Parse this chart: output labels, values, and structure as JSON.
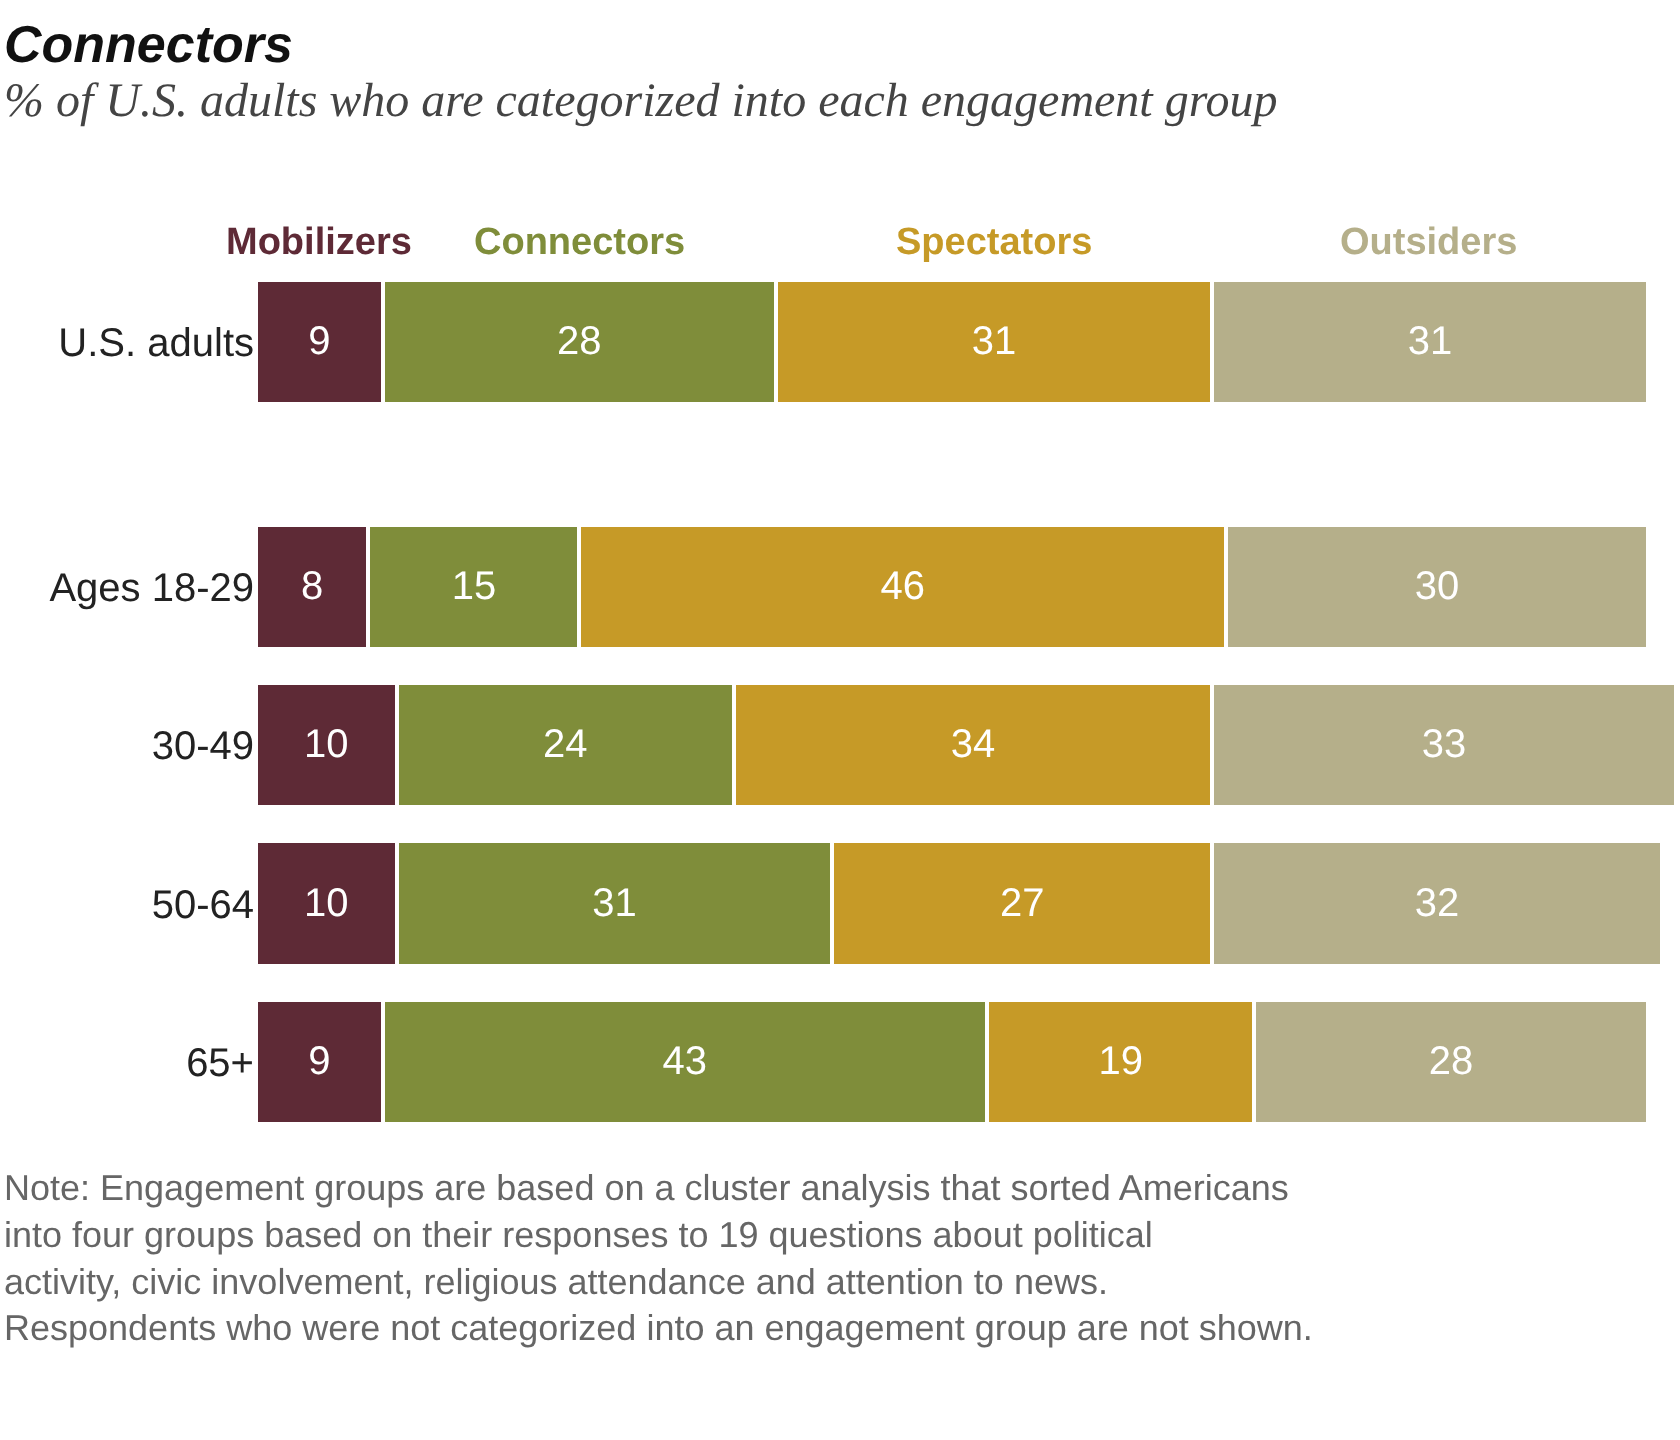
{
  "chart_data": {
    "type": "bar",
    "orientation": "horizontal",
    "stacked": true,
    "data_labels": true,
    "legend": "top",
    "tick_labels": "y",
    "title": "Connectors",
    "subtitle": "% of U.S. adults who are categorized into each engagement group",
    "categories": [
      "U.S. adults",
      "Ages 18-29",
      "30-49",
      "50-64",
      "65+"
    ],
    "series": [
      {
        "name": "Mobilizers",
        "color": "#5e2a36",
        "values": [
          9,
          8,
          10,
          10,
          9
        ]
      },
      {
        "name": "Connectors",
        "color": "#7f8d3a",
        "values": [
          28,
          15,
          24,
          31,
          43
        ]
      },
      {
        "name": "Spectators",
        "color": "#c69a27",
        "values": [
          31,
          46,
          34,
          27,
          19
        ]
      },
      {
        "name": "Outsiders",
        "color": "#b5af8a",
        "values": [
          31,
          30,
          33,
          32,
          28
        ]
      }
    ],
    "annotations": [
      "Note: Engagement groups are based on a cluster analysis that sorted Americans into four groups based on their responses to 19 questions about political activity, civic involvement, religious attendance and attention to news. Respondents who were not categorized into an engagement group are not shown."
    ]
  }
}
